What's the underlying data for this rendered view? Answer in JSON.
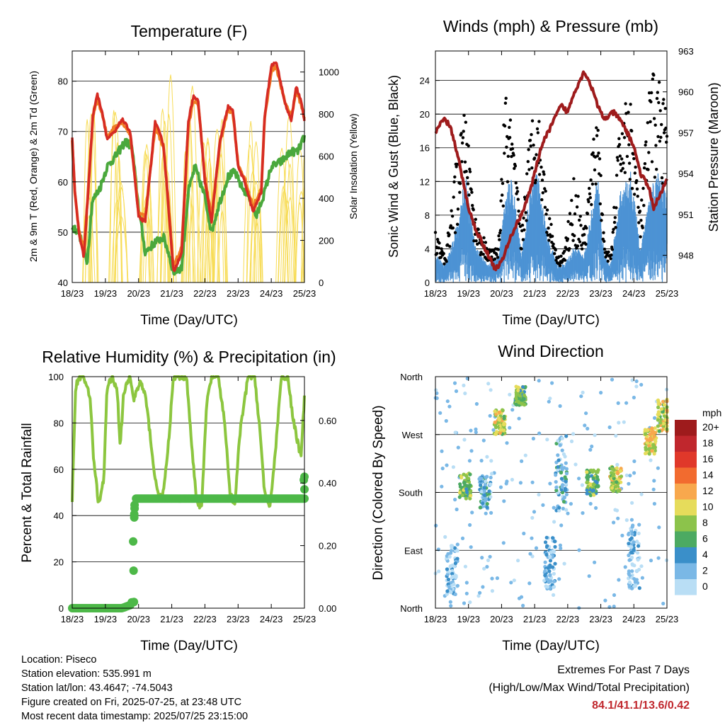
{
  "colors": {
    "t2m": "#d62b23",
    "t9m": "#f07d25",
    "td": "#4aa83c",
    "solar": "#f7dc57",
    "wind": "#4d93d4",
    "gust": "#000000",
    "pressure": "#9e1b1c",
    "rh": "#8cc63f",
    "precip": "#4db848",
    "extremes": "#c0272d"
  },
  "station": {
    "location": "Location: Piseco",
    "elevation": "Station elevation: 535.991 m",
    "latlon": "Station lat/lon: 43.4647; -74.5043",
    "created": "Figure created on Fri, 2025-07-25, at 23:48 UTC",
    "latest": "Most recent data timestamp: 2025/07/25 23:15:00"
  },
  "extremes": {
    "title": "Extremes For Past 7 Days",
    "subtitle": "(High/Low/Max Wind/Total Precipitation)",
    "values": "84.1/41.1/13.6/0.42"
  },
  "chart_data": [
    {
      "type": "line",
      "title": "Temperature (F)",
      "xlabel": "Time (Day/UTC)",
      "ylabel": "2m & 9m T (Red, Orange) & 2m Td (Green)",
      "y2label": "Solar Insolation (Yellow)",
      "xticks": [
        "18/23",
        "19/23",
        "20/23",
        "21/23",
        "22/23",
        "23/23",
        "24/23",
        "25/23"
      ],
      "xlim": [
        0,
        7
      ],
      "ylim": [
        40,
        86
      ],
      "yticks": [
        40,
        50,
        60,
        70,
        80
      ],
      "y2lim": [
        0,
        1100
      ],
      "y2ticks": [
        0,
        200,
        400,
        600,
        800,
        1000
      ],
      "series": [
        {
          "key": "t2m",
          "x": [
            0,
            0.08,
            0.2,
            0.35,
            0.5,
            0.62,
            0.75,
            0.9,
            1.05,
            1.3,
            1.5,
            1.75,
            2.0,
            2.2,
            2.5,
            2.75,
            2.9,
            3.05,
            3.3,
            3.5,
            3.65,
            3.8,
            4.0,
            4.2,
            4.45,
            4.7,
            4.85,
            5.0,
            5.2,
            5.45,
            5.7,
            5.8,
            6.0,
            6.15,
            6.4,
            6.6,
            6.75,
            6.9,
            7.0
          ],
          "y": [
            69,
            58,
            50,
            45,
            60,
            73,
            77.5,
            74,
            68.5,
            70,
            72.5,
            70,
            53,
            52,
            72,
            67.5,
            55,
            42,
            46,
            72,
            77,
            76,
            60,
            52,
            68,
            75,
            74,
            63,
            60,
            54,
            58,
            73,
            83,
            84,
            76,
            72,
            79,
            76,
            72
          ]
        },
        {
          "key": "t9m",
          "x": [
            0,
            0.08,
            0.2,
            0.35,
            0.5,
            0.62,
            0.75,
            0.9,
            1.05,
            1.3,
            1.5,
            1.75,
            2.0,
            2.2,
            2.5,
            2.75,
            2.9,
            3.05,
            3.3,
            3.5,
            3.65,
            3.8,
            4.0,
            4.2,
            4.45,
            4.7,
            4.85,
            5.0,
            5.2,
            5.45,
            5.7,
            5.8,
            6.0,
            6.15,
            6.4,
            6.6,
            6.75,
            6.9,
            7.0
          ],
          "y": [
            68,
            57.5,
            50.5,
            46,
            60,
            72.5,
            76.5,
            73.5,
            69,
            71,
            72,
            69.5,
            54,
            53,
            71,
            67,
            56,
            43,
            47,
            71,
            76,
            75.5,
            61,
            53,
            67.5,
            74.5,
            73.5,
            63.5,
            60.5,
            55,
            58.5,
            72.5,
            82,
            83,
            76,
            73,
            78,
            75.5,
            72.5
          ]
        },
        {
          "key": "td",
          "x": [
            0,
            0.2,
            0.45,
            0.6,
            0.85,
            1.05,
            1.3,
            1.6,
            1.8,
            2.0,
            2.2,
            2.5,
            2.75,
            2.9,
            3.05,
            3.3,
            3.5,
            3.7,
            4.0,
            4.2,
            4.4,
            4.7,
            4.9,
            5.1,
            5.35,
            5.55,
            5.8,
            6.0,
            6.3,
            6.6,
            6.8,
            7.0
          ],
          "y": [
            51,
            50,
            44,
            56,
            59,
            63,
            65,
            68,
            67,
            55,
            46,
            48,
            49,
            46,
            42,
            43,
            58,
            63,
            57,
            50,
            55,
            61,
            62,
            59,
            57,
            53,
            58,
            63,
            64,
            66,
            66,
            69
          ]
        },
        {
          "key": "solar",
          "axis": "right",
          "peaks_x": [
            0.55,
            1.35,
            2.3,
            2.85,
            3.55,
            4.05,
            4.45,
            5.5,
            6.45,
            7.0
          ],
          "peaks_y": [
            850,
            820,
            800,
            1000,
            980,
            720,
            860,
            770,
            860,
            650
          ]
        }
      ]
    },
    {
      "type": "scatter",
      "title": "Winds (mph) & Pressure (mb)",
      "xlabel": "Time (Day/UTC)",
      "ylabel": "Sonic Wind & Gust (Blue, Black)",
      "y2label": "Station Pressure (Maroon)",
      "xticks": [
        "18/23",
        "19/23",
        "20/23",
        "21/23",
        "22/23",
        "23/23",
        "24/23",
        "25/23"
      ],
      "xlim": [
        0,
        7
      ],
      "ylim": [
        0,
        27.5
      ],
      "yticks": [
        0,
        4,
        8,
        12,
        16,
        20,
        24
      ],
      "y2lim": [
        946,
        963
      ],
      "y2ticks": [
        948,
        951,
        954,
        957,
        960,
        963
      ],
      "series": [
        {
          "key": "wind",
          "name": "Sonic Wind",
          "envelope_x": [
            0,
            0.3,
            0.7,
            0.9,
            1.2,
            1.6,
            1.9,
            2.1,
            2.3,
            2.6,
            2.9,
            3.1,
            3.4,
            3.7,
            3.9,
            4.2,
            4.5,
            4.9,
            5.1,
            5.3,
            5.6,
            5.9,
            6.2,
            6.5,
            6.7,
            7.0
          ],
          "envelope_y": [
            3,
            2,
            7,
            12,
            4,
            2,
            3,
            9,
            12,
            3,
            11,
            12,
            5,
            2,
            2,
            4,
            3,
            12,
            3,
            2,
            10,
            12,
            4,
            10,
            12,
            11
          ]
        },
        {
          "key": "gust",
          "name": "Gust",
          "envelope_x": [
            0,
            0.3,
            0.7,
            0.9,
            1.2,
            1.6,
            1.9,
            2.1,
            2.3,
            2.6,
            2.9,
            3.1,
            3.4,
            3.7,
            3.9,
            4.2,
            4.5,
            4.9,
            5.1,
            5.3,
            5.6,
            5.9,
            6.2,
            6.5,
            6.7,
            7.0
          ],
          "envelope_y": [
            6,
            3,
            17,
            20.5,
            8,
            4,
            4,
            23,
            19,
            6,
            20,
            21,
            9,
            3,
            4,
            13,
            6,
            22,
            5,
            3,
            21,
            22,
            8,
            25,
            25.5,
            21
          ]
        },
        {
          "key": "pressure",
          "name": "Station Pressure",
          "axis": "right",
          "x": [
            0,
            0.25,
            0.45,
            0.7,
            1.0,
            1.2,
            1.5,
            1.8,
            2.0,
            2.3,
            2.6,
            2.9,
            3.2,
            3.5,
            3.8,
            4.0,
            4.2,
            4.5,
            4.7,
            4.9,
            5.1,
            5.4,
            5.7,
            6.0,
            6.2,
            6.45,
            6.6,
            6.8,
            7.0
          ],
          "y": [
            957,
            958,
            957.5,
            955,
            951.5,
            950,
            948.5,
            947,
            947.5,
            949.5,
            951,
            953,
            956,
            957.5,
            959,
            958.5,
            960,
            961.5,
            960.5,
            959,
            958,
            958.5,
            957.5,
            956,
            954,
            953,
            951.5,
            952.5,
            953.5
          ]
        }
      ]
    },
    {
      "type": "line",
      "title": "Relative Humidity (%) & Precipitation (in)",
      "xlabel": "Time (Day/UTC)",
      "ylabel": "Percent & Total Rainfall",
      "xticks": [
        "18/23",
        "19/23",
        "20/23",
        "21/23",
        "22/23",
        "23/23",
        "24/23",
        "25/23"
      ],
      "xlim": [
        0,
        7
      ],
      "ylim": [
        0,
        100
      ],
      "yticks": [
        0,
        20,
        40,
        60,
        80,
        100
      ],
      "y2lim": [
        0,
        0.74
      ],
      "y2ticks": [
        "0.00",
        "0.20",
        "0.40",
        "0.60"
      ],
      "series": [
        {
          "key": "rh",
          "axis": "left",
          "x": [
            0,
            0.1,
            0.2,
            0.35,
            0.55,
            0.65,
            0.8,
            0.95,
            1.05,
            1.2,
            1.35,
            1.45,
            1.55,
            1.75,
            1.85,
            2.05,
            2.2,
            2.35,
            2.5,
            2.7,
            2.85,
            3.05,
            3.2,
            3.45,
            3.6,
            3.75,
            3.9,
            4.05,
            4.2,
            4.4,
            4.6,
            4.75,
            4.9,
            5.05,
            5.3,
            5.5,
            5.65,
            5.8,
            5.95,
            6.15,
            6.3,
            6.5,
            6.65,
            6.75,
            6.9,
            7.0
          ],
          "y": [
            46,
            95,
            100,
            100,
            90,
            63,
            45,
            55,
            95,
            100,
            95,
            70,
            93,
            100,
            90,
            98,
            92,
            75,
            55,
            46,
            62,
            99,
            100,
            100,
            70,
            47,
            43,
            88,
            100,
            100,
            80,
            50,
            44,
            75,
            100,
            100,
            78,
            50,
            42,
            72,
            100,
            100,
            82,
            75,
            65,
            92
          ]
        },
        {
          "key": "precip",
          "axis": "right",
          "x": [
            0,
            1.5,
            1.75,
            1.8,
            1.82,
            1.85,
            1.87,
            1.9,
            7.0,
            7.0
          ],
          "y": [
            0.0,
            0.0,
            0.01,
            0.02,
            0.12,
            0.28,
            0.3,
            0.35,
            0.35,
            0.42
          ]
        }
      ]
    },
    {
      "type": "scatter",
      "title": "Wind Direction",
      "xlabel": "Time (Day/UTC)",
      "ylabel": "Direction (Colored By Speed)",
      "xticks": [
        "18/23",
        "19/23",
        "20/23",
        "21/23",
        "22/23",
        "23/23",
        "24/23",
        "25/23"
      ],
      "xlim": [
        0,
        7
      ],
      "ylim": [
        0,
        360
      ],
      "yticks": [
        "North",
        "East",
        "South",
        "West",
        "North"
      ],
      "legend_title": "mph",
      "legend_placement": "right",
      "colorbar": [
        {
          "label": "20+",
          "color": "#9e1b1c"
        },
        {
          "label": "18",
          "color": "#c0272d"
        },
        {
          "label": "16",
          "color": "#e0382a"
        },
        {
          "label": "14",
          "color": "#f26b2f"
        },
        {
          "label": "12",
          "color": "#f8a84d"
        },
        {
          "label": "10",
          "color": "#e6dc5b"
        },
        {
          "label": "8",
          "color": "#8cc34b"
        },
        {
          "label": "6",
          "color": "#4caa62"
        },
        {
          "label": "4",
          "color": "#3a8fc9"
        },
        {
          "label": "2",
          "color": "#7ab8e6"
        },
        {
          "label": "0",
          "color": "#b9def5"
        }
      ],
      "clusters": [
        {
          "x": 0.5,
          "dir": 60,
          "spread": 40,
          "speed": 1
        },
        {
          "x": 0.9,
          "dir": 190,
          "spread": 20,
          "speed": 7
        },
        {
          "x": 1.5,
          "dir": 180,
          "spread": 25,
          "speed": 3
        },
        {
          "x": 1.95,
          "dir": 290,
          "spread": 20,
          "speed": 9
        },
        {
          "x": 2.55,
          "dir": 330,
          "spread": 15,
          "speed": 7
        },
        {
          "x": 3.45,
          "dir": 70,
          "spread": 40,
          "speed": 2
        },
        {
          "x": 3.8,
          "dir": 210,
          "spread": 60,
          "speed": 3
        },
        {
          "x": 4.75,
          "dir": 195,
          "spread": 20,
          "speed": 7
        },
        {
          "x": 5.45,
          "dir": 200,
          "spread": 20,
          "speed": 9
        },
        {
          "x": 6.0,
          "dir": 80,
          "spread": 50,
          "speed": 1
        },
        {
          "x": 6.5,
          "dir": 260,
          "spread": 20,
          "speed": 10
        },
        {
          "x": 6.9,
          "dir": 300,
          "spread": 25,
          "speed": 9
        }
      ]
    }
  ]
}
